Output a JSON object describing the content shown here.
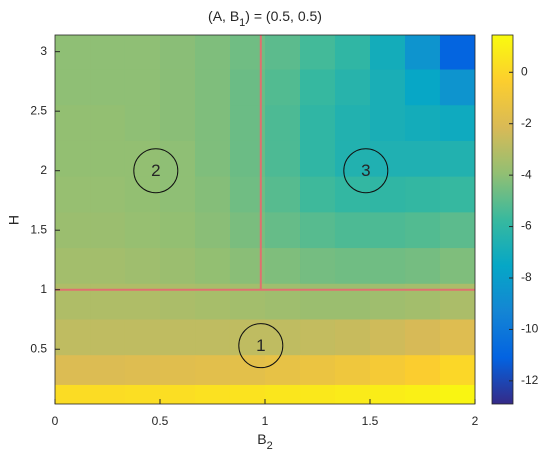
{
  "chart_data": {
    "type": "heatmap",
    "title": [
      "(A, B",
      "1",
      ") = (0.5, 0.5)"
    ],
    "xlabel": [
      "B",
      "2"
    ],
    "ylabel": "H",
    "xlim": [
      0,
      2
    ],
    "ylim": [
      0.04,
      3.14
    ],
    "xticks": [
      0,
      0.5,
      1,
      1.5,
      2
    ],
    "yticks": [
      0.5,
      1,
      1.5,
      2,
      2.5,
      3
    ],
    "x_edges": [
      0,
      0.1667,
      0.3333,
      0.5,
      0.6667,
      0.8333,
      1,
      1.1667,
      1.3333,
      1.5,
      1.6667,
      1.8333,
      2
    ],
    "y_edges": [
      3.14,
      2.85,
      2.55,
      2.25,
      1.95,
      1.65,
      1.35,
      1.05,
      0.75,
      0.45,
      0.2,
      0.04
    ],
    "z": [
      [
        -4,
        -4,
        -4,
        -4.1,
        -4.3,
        -4.6,
        -5,
        -5.5,
        -6,
        -7,
        -8.5,
        -11
      ],
      [
        -4,
        -4,
        -4,
        -4.1,
        -4.3,
        -4.7,
        -5.2,
        -5.8,
        -6.3,
        -6.8,
        -7.5,
        -8.5
      ],
      [
        -3.9,
        -3.9,
        -4,
        -4.1,
        -4.3,
        -4.7,
        -5.3,
        -6,
        -6.5,
        -6.8,
        -7,
        -7.2
      ],
      [
        -3.9,
        -3.9,
        -3.9,
        -4,
        -4.3,
        -4.7,
        -5.3,
        -6,
        -6.5,
        -6.6,
        -6.6,
        -6.5
      ],
      [
        -3.8,
        -3.8,
        -3.9,
        -4,
        -4.2,
        -4.6,
        -5.1,
        -5.6,
        -5.9,
        -6,
        -5.9,
        -5.8
      ],
      [
        -3.7,
        -3.7,
        -3.8,
        -3.9,
        -4.1,
        -4.4,
        -4.8,
        -5.1,
        -5.3,
        -5.3,
        -5.2,
        -5
      ],
      [
        -3.5,
        -3.5,
        -3.6,
        -3.7,
        -3.9,
        -4.1,
        -4.3,
        -4.5,
        -4.6,
        -4.6,
        -4.5,
        -4.3
      ],
      [
        -3.2,
        -3.2,
        -3.2,
        -3.3,
        -3.4,
        -3.5,
        -3.6,
        -3.7,
        -3.7,
        -3.6,
        -3.5,
        -3.3
      ],
      [
        -2.8,
        -2.8,
        -2.8,
        -2.8,
        -2.8,
        -2.8,
        -2.8,
        -2.7,
        -2.6,
        -2.4,
        -2.2,
        -1.9
      ],
      [
        -2,
        -2,
        -1.9,
        -1.8,
        -1.7,
        -1.6,
        -1.4,
        -1.2,
        -1,
        -0.7,
        -0.4,
        0
      ],
      [
        0.2,
        0.2,
        0.3,
        0.3,
        0.4,
        0.5,
        0.6,
        0.7,
        0.8,
        0.9,
        1,
        1.2
      ]
    ],
    "clim": [
      -12.9,
      1.45
    ],
    "cticks": [
      -12,
      -10,
      -8,
      -6,
      -4,
      -2,
      0
    ],
    "colormap": [
      "#352a87",
      "#0363e1",
      "#1485d4",
      "#06a7c6",
      "#38b99e",
      "#92bf73",
      "#d9ba56",
      "#fcce2e",
      "#f9fb0e"
    ],
    "boundary_color": "#e07070",
    "boundaries": [
      {
        "x": [
          0,
          2
        ],
        "y": [
          1,
          1
        ]
      },
      {
        "x": [
          0.98,
          0.98
        ],
        "y": [
          1,
          3.14
        ]
      }
    ],
    "regions": [
      {
        "label": "1",
        "x": 0.98,
        "y": 0.53
      },
      {
        "label": "2",
        "x": 0.48,
        "y": 2
      },
      {
        "label": "3",
        "x": 1.48,
        "y": 2
      }
    ]
  }
}
